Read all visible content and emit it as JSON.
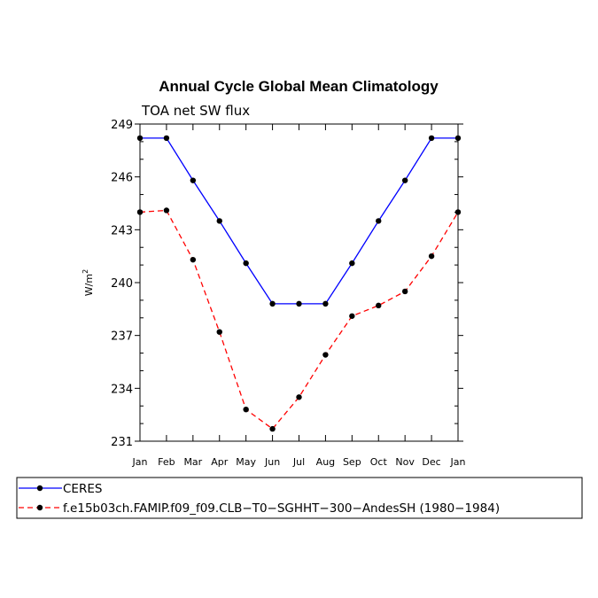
{
  "chart_data": {
    "type": "line",
    "title": "Annual Cycle Global Mean Climatology",
    "subtitle": "TOA net SW flux",
    "xlabel": "",
    "ylabel": "W/m",
    "ylabel_superscript": "2",
    "categories": [
      "Jan",
      "Feb",
      "Mar",
      "Apr",
      "May",
      "Jun",
      "Jul",
      "Aug",
      "Sep",
      "Oct",
      "Nov",
      "Dec",
      "Jan"
    ],
    "ylim": [
      231,
      249
    ],
    "yticks": [
      "231",
      "234",
      "237",
      "240",
      "243",
      "246",
      "249"
    ],
    "series": [
      {
        "name": "CERES",
        "color": "#0000ff",
        "dash": "solid",
        "values": [
          248.2,
          248.2,
          245.8,
          243.5,
          241.1,
          238.8,
          238.8,
          238.8,
          241.1,
          243.5,
          245.8,
          248.2,
          248.2
        ]
      },
      {
        "name": "f.e15b03ch.FAMIP.f09_f09.CLB-T0-SGHHT-300-AndesSH (1980-1984)",
        "color": "#ff0000",
        "dash": "dashed",
        "values": [
          244.0,
          244.1,
          241.3,
          237.2,
          232.8,
          231.7,
          233.5,
          235.9,
          238.1,
          238.7,
          239.5,
          241.5,
          244.0
        ]
      }
    ],
    "legend_entries": [
      "CERES",
      "f.e15b03ch.FAMIP.f09_f09.CLB−T0−SGHHT−300−AndesSH (1980−1984)"
    ],
    "legend_position": "bottom",
    "grid": false
  }
}
